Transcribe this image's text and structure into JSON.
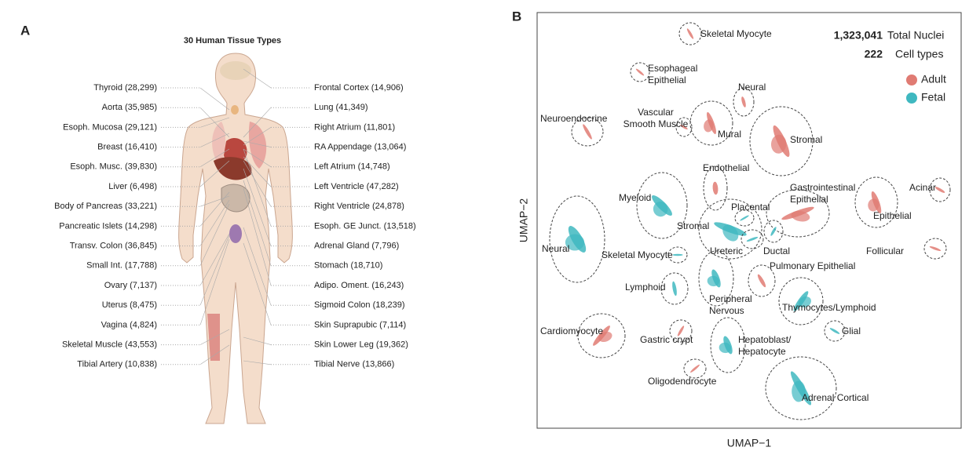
{
  "panel_a": {
    "letter": "A",
    "title": "30 Human Tissue Types",
    "left_labels": [
      "Thyroid (28,299)",
      "Aorta (35,985)",
      "Esoph. Mucosa (29,121)",
      "Breast (16,410)",
      "Esoph. Musc. (39,830)",
      "Liver (6,498)",
      "Body of Pancreas (33,221)",
      "Pancreatic Islets (14,298)",
      "Transv. Colon (36,845)",
      "Small Int. (17,788)",
      "Ovary (7,137)",
      "Uterus (8,475)",
      "Vagina (4,824)",
      "Skeletal Muscle (43,553)",
      "Tibial Artery (10,838)"
    ],
    "right_labels": [
      "Frontal Cortex (14,906)",
      "Lung (41,349)",
      "Right Atrium (11,801)",
      "RA Appendage (13,064)",
      "Left Atrium (14,748)",
      "Left Ventricle (47,282)",
      "Right Ventricle (24,878)",
      "Esoph. GE Junct. (13,518)",
      "Adrenal Gland (7,796)",
      "Stomach (18,710)",
      "Adipo. Oment. (16,243)",
      "Sigmoid Colon (18,239)",
      "Skin Suprapubic (7,114)",
      "Skin Lower Leg (19,362)",
      "Tibial Nerve (13,866)"
    ]
  },
  "panel_b": {
    "letter": "B",
    "x_label": "UMAP−1",
    "y_label": "UMAP−2",
    "stats": [
      {
        "number": "1,323,041",
        "label": "Total Nuclei"
      },
      {
        "number": "222",
        "label": "Cell types"
      }
    ],
    "legend": [
      {
        "name": "Adult",
        "color": "#e07b73"
      },
      {
        "name": "Fetal",
        "color": "#3fb8c0"
      }
    ],
    "clusters": [
      [
        "Skeletal Myocyte"
      ],
      [
        "Esophageal",
        "Epithelial"
      ],
      [
        "Neural"
      ],
      [
        "Neuroendocrine"
      ],
      [
        "Vascular",
        "Smooth Muscle"
      ],
      [
        "Mural"
      ],
      [
        "Stromal"
      ],
      [
        "Endothelial"
      ],
      [
        "Myeloid"
      ],
      [
        "Gastrointestinal",
        "Epithelial"
      ],
      [
        "Epithelial"
      ],
      [
        "Acinar"
      ],
      [
        "Placental"
      ],
      [
        "Stromal"
      ],
      [
        "Neural"
      ],
      [
        "Skeletal Myocyte"
      ],
      [
        "Ureteric"
      ],
      [
        "Ductal"
      ],
      [
        "Follicular"
      ],
      [
        "Pulmonary Epithelial"
      ],
      [
        "Lymphoid"
      ],
      [
        "Peripheral",
        "Nervous"
      ],
      [
        "Thymocytes/Lymphoid"
      ],
      [
        "Cardiomyocyte"
      ],
      [
        "Gastric crypt"
      ],
      [
        "Glial"
      ],
      [
        "Hepatoblast/",
        "Hepatocyte"
      ],
      [
        "Oligodendrocyte"
      ],
      [
        "Adrenal Cortical"
      ]
    ]
  }
}
